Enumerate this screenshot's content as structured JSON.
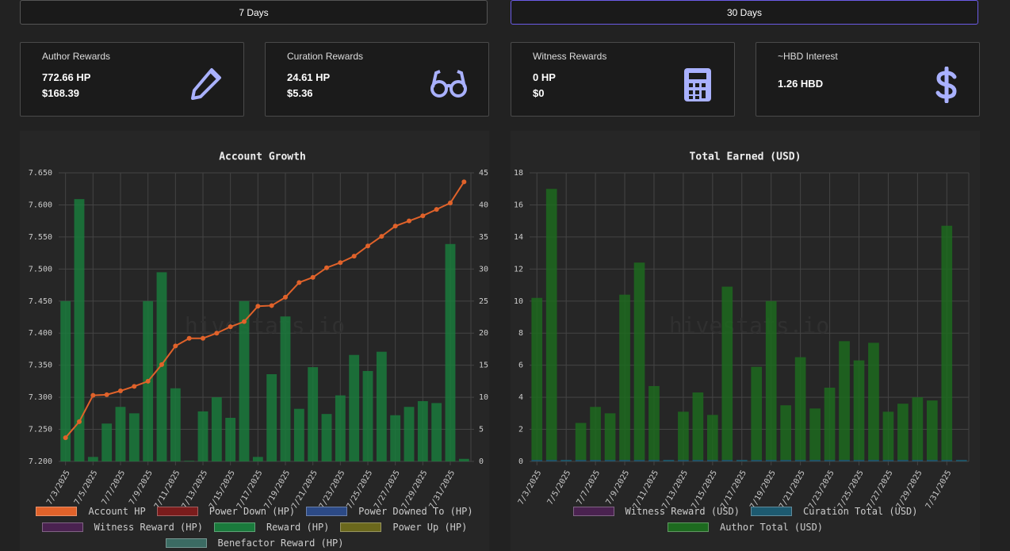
{
  "buttons": [
    "7 Days",
    "30 Days"
  ],
  "cards": [
    {
      "title": "Author Rewards",
      "lines": [
        "772.66 HP",
        "$168.39"
      ]
    },
    {
      "title": "Curation Rewards",
      "lines": [
        "24.61 HP",
        "$5.36"
      ]
    },
    {
      "title": "Witness Rewards",
      "lines": [
        "0 HP",
        "$0"
      ]
    },
    {
      "title": "~HBD Interest",
      "lines": [
        "1.26 HBD"
      ]
    }
  ],
  "chart_data": [
    {
      "type": "bar",
      "title": "Account Growth",
      "annotation": "hivestats.io",
      "categories": [
        "7/3/2025",
        null,
        "7/5/2025",
        null,
        "7/7/2025",
        null,
        "7/9/2025",
        null,
        "7/11/2025",
        null,
        "7/13/2025",
        null,
        "7/15/2025",
        null,
        "7/17/2025",
        null,
        "7/19/2025",
        null,
        "7/21/2025",
        null,
        "7/23/2025",
        null,
        "7/25/2025",
        null,
        "7/27/2025",
        null,
        "7/29/2025",
        null,
        "7/31/2025",
        null
      ],
      "ylim": [
        7.2,
        7.65
      ],
      "yticks": [
        {
          "value": 7.2,
          "label": "7.200"
        },
        {
          "value": 7.25,
          "label": "7.250"
        },
        {
          "value": 7.3,
          "label": "7.300"
        },
        {
          "value": 7.35,
          "label": "7.350"
        },
        {
          "value": 7.4,
          "label": "7.400"
        },
        {
          "value": 7.45,
          "label": "7.450"
        },
        {
          "value": 7.5,
          "label": "7.500"
        },
        {
          "value": 7.55,
          "label": "7.550"
        },
        {
          "value": 7.6,
          "label": "7.600"
        },
        {
          "value": 7.65,
          "label": "7.650"
        }
      ],
      "y2lim": [
        0,
        45
      ],
      "y2ticks": [
        0,
        5,
        10,
        15,
        20,
        25,
        30,
        35,
        40,
        45
      ],
      "grid": true,
      "series": [
        {
          "name": "Account HP",
          "color": "#e0622a",
          "type": "line",
          "axis": "y",
          "values": [
            7.237,
            7.262,
            7.303,
            7.304,
            7.31,
            7.317,
            7.325,
            7.351,
            7.38,
            7.392,
            7.392,
            7.4,
            7.41,
            7.418,
            7.442,
            7.443,
            7.456,
            7.479,
            7.487,
            7.502,
            7.51,
            7.52,
            7.536,
            7.551,
            7.567,
            7.575,
            7.583,
            7.593,
            7.603,
            7.636
          ]
        },
        {
          "name": "Power Down (HP)",
          "color": "#7a1c1c"
        },
        {
          "name": "Power Downed To (HP)",
          "color": "#2c4a86"
        },
        {
          "name": "Witness Reward (HP)",
          "color": "#4a2250"
        },
        {
          "name": "Reward (HP)",
          "color": "#1a7a3c",
          "axis": "y2",
          "values": [
            25.0,
            40.9,
            0.7,
            5.9,
            8.5,
            7.5,
            25.0,
            29.5,
            11.4,
            0.1,
            7.8,
            10.0,
            6.8,
            25.0,
            0.7,
            13.6,
            22.6,
            8.2,
            14.7,
            7.4,
            10.3,
            16.6,
            14.1,
            17.1,
            7.2,
            8.5,
            9.4,
            9.1,
            33.9,
            0.4
          ]
        },
        {
          "name": "Power Up (HP)",
          "color": "#6b681c"
        },
        {
          "name": "Benefactor Reward (HP)",
          "color": "#3b6b63"
        }
      ]
    },
    {
      "type": "bar",
      "title": "Total Earned (USD)",
      "annotation": "hivestats.io",
      "categories": [
        "7/3/2025",
        null,
        "7/5/2025",
        null,
        "7/7/2025",
        null,
        "7/9/2025",
        null,
        "7/11/2025",
        null,
        "7/13/2025",
        null,
        "7/15/2025",
        null,
        "7/17/2025",
        null,
        "7/19/2025",
        null,
        "7/21/2025",
        null,
        "7/23/2025",
        null,
        "7/25/2025",
        null,
        "7/27/2025",
        null,
        "7/29/2025",
        null,
        "7/31/2025",
        null
      ],
      "ylim": [
        0,
        18
      ],
      "yticks": [
        0,
        2,
        4,
        6,
        8,
        10,
        12,
        14,
        16,
        18
      ],
      "grid": true,
      "series": [
        {
          "name": "Witness Reward (USD)",
          "color": "#4a2250",
          "values": [
            0,
            0,
            0,
            0,
            0,
            0,
            0,
            0,
            0,
            0,
            0,
            0,
            0,
            0,
            0,
            0,
            0,
            0,
            0,
            0,
            0,
            0,
            0,
            0,
            0,
            0,
            0,
            0,
            0,
            0
          ]
        },
        {
          "name": "Curation Total (USD)",
          "color": "#1d5a70",
          "values": [
            0.1,
            0.1,
            0.1,
            0.1,
            0.1,
            0.1,
            0.1,
            0.1,
            0.1,
            0.1,
            0.1,
            0.1,
            0.1,
            0.1,
            0.1,
            0.1,
            0.1,
            0.1,
            0.1,
            0.1,
            0.1,
            0.1,
            0.1,
            0.1,
            0.1,
            0.1,
            0.1,
            0.1,
            0.1,
            0.1
          ]
        },
        {
          "name": "Author Total (USD)",
          "color": "#1d6a1f",
          "values": [
            10.1,
            16.9,
            0,
            2.3,
            3.3,
            2.9,
            10.3,
            12.3,
            4.6,
            0,
            3.0,
            4.2,
            2.8,
            10.8,
            0,
            5.8,
            9.9,
            3.4,
            6.4,
            3.2,
            4.5,
            7.4,
            6.2,
            7.3,
            3.0,
            3.5,
            3.9,
            3.7,
            14.6,
            0
          ]
        }
      ]
    }
  ]
}
